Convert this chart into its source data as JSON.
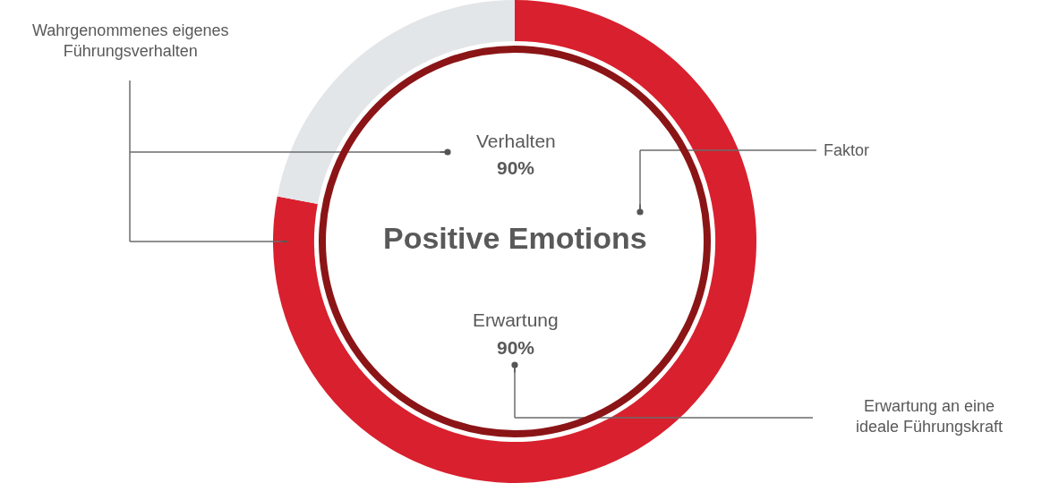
{
  "chart_data": {
    "type": "donut",
    "title": "Positive Emotions",
    "categories": [
      null,
      null
    ],
    "series": [
      {
        "colors": [
          "#d9202e",
          "#e3e6e9"
        ],
        "values": [
          78,
          22
        ]
      }
    ],
    "annotations": [
      "Wahrgenommenes eigenes\nFührungsverhalten",
      "Verhalten",
      "90%",
      "Erwartung",
      "90%",
      "Faktor",
      "Erwartung an eine\nideale Führungskraft"
    ],
    "legend": false
  }
}
